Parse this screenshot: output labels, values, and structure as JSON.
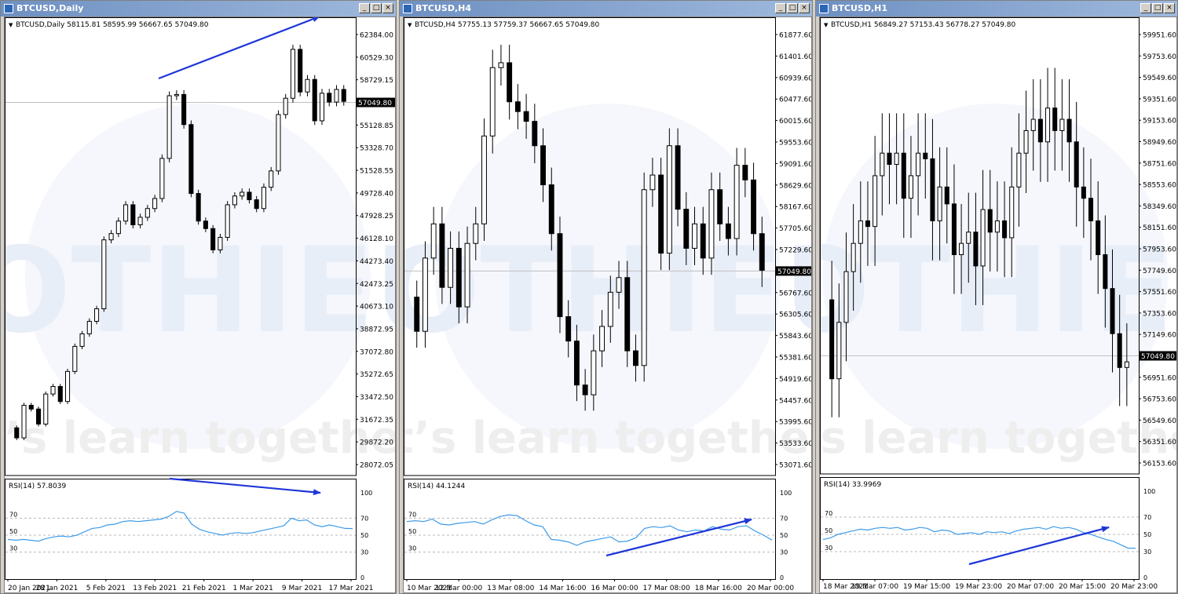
{
  "colors": {
    "arrow": "#1f36d8",
    "rsi_line": "#3d9be9",
    "watermark": "#e8eef8",
    "candle_bull": "#ffffff",
    "candle_bear": "#000000",
    "price_line": "#c0c0c0"
  },
  "watermark": {
    "brand": "TOTHIEU",
    "tagline": "let’s learn together"
  },
  "window_buttons": [
    "_",
    "□",
    "×"
  ],
  "panels": [
    {
      "title": "BTCUSD,Daily",
      "header": "BTCUSD,Daily  58115.81 58595.99 56667.65 57049.80",
      "rsi_label": "RSI(14) 57.8039",
      "current_price": "57049.80",
      "price_ticks": [
        "62384.00",
        "60529.30",
        "58729.15",
        "57049.80",
        "55128.85",
        "53328.70",
        "51528.55",
        "49728.40",
        "47928.25",
        "46128.10",
        "44273.40",
        "42473.25",
        "40673.10",
        "38872.95",
        "37072.80",
        "35272.65",
        "33472.50",
        "31672.35",
        "29872.20",
        "28072.05"
      ],
      "rsi_ticks": [
        "100",
        "70",
        "50",
        "30",
        "0"
      ],
      "rsi_left_labels": [
        "70",
        "50",
        "30"
      ],
      "time_labels": [
        "20 Jan 2021",
        "28 Jan 2021",
        "5 Feb 2021",
        "13 Feb 2021",
        "21 Feb 2021",
        "1 Mar 2021",
        "9 Mar 2021",
        "17 Mar 2021"
      ],
      "chart_data": {
        "type": "candlestick",
        "timeframe": "Daily",
        "ylim": [
          28072.05,
          63000
        ],
        "price_series": [
          31000,
          30200,
          32800,
          32500,
          31300,
          33700,
          34300,
          33100,
          35500,
          37500,
          38500,
          39500,
          40500,
          46000,
          46500,
          47500,
          48800,
          47200,
          47800,
          48500,
          49300,
          52500,
          57500,
          57600,
          55200,
          49700,
          47500,
          46900,
          45200,
          46200,
          48800,
          49500,
          49800,
          49200,
          48500,
          50200,
          51500,
          56000,
          57300,
          61200,
          57800,
          58800,
          55500,
          57700,
          57000,
          58000,
          57049.8
        ],
        "rsi_series": [
          45,
          44,
          45,
          44,
          43,
          46,
          48,
          49,
          48,
          50,
          54,
          58,
          59,
          62,
          63,
          66,
          67,
          66,
          67,
          68,
          69,
          72,
          78,
          76,
          63,
          57,
          54,
          52,
          50,
          52,
          53,
          52,
          53,
          55,
          57,
          59,
          61,
          70,
          67,
          68,
          62,
          60,
          62,
          60,
          58,
          57.8039
        ],
        "rsi_ylim": [
          0,
          100
        ],
        "trend_arrows": [
          {
            "pane": "price",
            "from": [
              "12 Feb 2021",
              58300
            ],
            "to": [
              "18 Mar 2021",
              62600
            ]
          },
          {
            "pane": "rsi",
            "from": [
              "13 Feb 2021",
              81
            ],
            "to": [
              "13 Mar 2021",
              71
            ]
          }
        ]
      }
    },
    {
      "title": "BTCUSD,H4",
      "header": "BTCUSD,H4  57755.13 57759.37 56667.65 57049.80",
      "rsi_label": "RSI(14) 44.1244",
      "current_price": "57049.80",
      "price_ticks": [
        "61877.60",
        "61401.60",
        "60939.60",
        "60477.60",
        "60015.60",
        "59553.60",
        "59091.60",
        "58629.60",
        "58167.60",
        "57705.60",
        "57229.60",
        "57049.80",
        "56767.60",
        "56305.60",
        "55843.60",
        "55381.60",
        "54919.60",
        "54457.60",
        "53995.60",
        "53533.60",
        "53071.60"
      ],
      "rsi_ticks": [
        "100",
        "70",
        "50",
        "30",
        "0"
      ],
      "rsi_left_labels": [
        "70",
        "50",
        "30"
      ],
      "time_labels": [
        "10 Mar 2021",
        "12 Mar 00:00",
        "13 Mar 08:00",
        "14 Mar 16:00",
        "16 Mar 00:00",
        "17 Mar 08:00",
        "18 Mar 16:00",
        "20 Mar 00:00"
      ],
      "chart_data": {
        "type": "candlestick",
        "timeframe": "H4",
        "ylim": [
          53071.6,
          62000
        ],
        "price_series": [
          56500,
          55800,
          57300,
          58000,
          56700,
          57500,
          56300,
          57600,
          58000,
          59800,
          61200,
          61300,
          60500,
          60300,
          60100,
          59600,
          58800,
          57800,
          56100,
          55600,
          54700,
          54500,
          55400,
          55900,
          56600,
          56900,
          55400,
          55100,
          58700,
          59000,
          57400,
          59600,
          58300,
          57500,
          58000,
          57300,
          58700,
          58000,
          57700,
          59200,
          58900,
          57800,
          57049.8
        ],
        "rsi_series": [
          66,
          67,
          66,
          69,
          63,
          62,
          64,
          65,
          66,
          63,
          68,
          72,
          74,
          73,
          67,
          62,
          60,
          45,
          44,
          42,
          38,
          42,
          44,
          46,
          48,
          42,
          43,
          47,
          58,
          60,
          59,
          61,
          56,
          54,
          56,
          55,
          60,
          57,
          56,
          60,
          61,
          55,
          50,
          44.1244
        ],
        "rsi_ylim": [
          0,
          100
        ],
        "trend_arrows": [
          {
            "pane": "rsi",
            "from": [
              "16 Mar 08:00",
              -4
            ],
            "to": [
              "20 Mar 12:00",
              39
            ]
          }
        ]
      }
    },
    {
      "title": "BTCUSD,H1",
      "header": "BTCUSD,H1  56849.27 57153.43 56778.27 57049.80",
      "rsi_label": "RSI(14) 33.9969",
      "current_price": "57049.80",
      "price_ticks": [
        "59951.60",
        "59753.60",
        "59549.60",
        "59351.60",
        "59153.60",
        "58949.60",
        "58751.60",
        "58553.60",
        "58349.60",
        "58151.60",
        "57953.60",
        "57749.60",
        "57551.60",
        "57353.60",
        "57149.60",
        "57049.80",
        "56951.60",
        "56753.60",
        "56549.60",
        "56351.60",
        "56153.60"
      ],
      "rsi_ticks": [
        "100",
        "70",
        "50",
        "30",
        "0"
      ],
      "rsi_left_labels": [
        "70",
        "50",
        "30"
      ],
      "time_labels": [
        "18 Mar 2021",
        "19 Mar 07:00",
        "19 Mar 15:00",
        "19 Mar 23:00",
        "20 Mar 07:00",
        "20 Mar 15:00",
        "20 Mar 23:00"
      ],
      "chart_data": {
        "type": "candlestick",
        "timeframe": "H1",
        "ylim": [
          56153.6,
          60050
        ],
        "price_series": [
          57600,
          56900,
          57400,
          57850,
          58100,
          58300,
          58250,
          58700,
          58900,
          58800,
          58900,
          58500,
          58700,
          58900,
          58850,
          58300,
          58600,
          58450,
          58000,
          58100,
          58200,
          57900,
          58400,
          58200,
          58300,
          58150,
          58600,
          58900,
          59100,
          59200,
          59000,
          59300,
          59100,
          59200,
          59000,
          58600,
          58500,
          58300,
          58000,
          57700,
          57300,
          57000,
          57049.8
        ],
        "rsi_series": [
          44,
          46,
          50,
          52,
          54,
          56,
          55,
          57,
          58,
          57,
          58,
          55,
          56,
          58,
          57,
          53,
          55,
          54,
          50,
          51,
          52,
          50,
          53,
          52,
          53,
          51,
          54,
          56,
          57,
          58,
          56,
          59,
          57,
          58,
          56,
          52,
          50,
          47,
          44,
          42,
          38,
          34,
          33.9969
        ],
        "rsi_ylim": [
          0,
          100
        ],
        "trend_arrows": [
          {
            "pane": "rsi",
            "from": [
              "19 Mar 23:00",
              -1
            ],
            "to": [
              "20 Mar 23:00",
              38
            ]
          }
        ]
      }
    }
  ]
}
